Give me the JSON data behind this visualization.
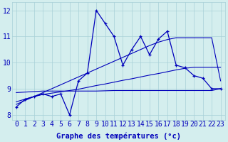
{
  "title": "Graphe des températures (°c)",
  "background_color": "#d4eeee",
  "grid_color": "#a8d0d8",
  "line_color": "#0000bb",
  "x_labels": [
    "0",
    "1",
    "2",
    "3",
    "4",
    "5",
    "6",
    "7",
    "8",
    "9",
    "10",
    "11",
    "12",
    "13",
    "14",
    "15",
    "16",
    "17",
    "18",
    "19",
    "20",
    "21",
    "22",
    "23"
  ],
  "x_data": [
    0,
    1,
    2,
    3,
    4,
    5,
    6,
    7,
    8,
    9,
    10,
    11,
    12,
    13,
    14,
    15,
    16,
    17,
    18,
    19,
    20,
    21,
    22,
    23
  ],
  "main_line_y": [
    8.3,
    8.6,
    8.7,
    8.8,
    8.7,
    8.8,
    8.0,
    9.3,
    9.6,
    12.0,
    11.5,
    11.0,
    9.9,
    10.5,
    11.0,
    10.3,
    10.9,
    11.2,
    9.9,
    9.8,
    9.5,
    9.4,
    9.0,
    9.0
  ],
  "trend_flat_y": [
    8.85,
    8.87,
    8.89,
    8.91,
    8.91,
    8.91,
    8.91,
    8.91,
    8.91,
    8.91,
    8.92,
    8.93,
    8.93,
    8.93,
    8.93,
    8.93,
    8.93,
    8.93,
    8.93,
    8.93,
    8.93,
    8.93,
    8.93,
    9.0
  ],
  "trend_mid_y": [
    8.5,
    8.6,
    8.7,
    8.78,
    8.83,
    8.88,
    8.93,
    8.98,
    9.05,
    9.12,
    9.18,
    9.25,
    9.32,
    9.38,
    9.45,
    9.52,
    9.58,
    9.65,
    9.72,
    9.78,
    9.82,
    9.82,
    9.82,
    9.82
  ],
  "trend_steep_y": [
    8.4,
    8.55,
    8.7,
    8.85,
    9.0,
    9.15,
    9.3,
    9.45,
    9.6,
    9.75,
    9.9,
    10.05,
    10.2,
    10.35,
    10.5,
    10.65,
    10.78,
    10.88,
    10.95,
    10.95,
    10.95,
    10.95,
    10.95,
    9.3
  ],
  "ylim": [
    7.8,
    12.3
  ],
  "yticks": [
    8,
    9,
    10,
    11,
    12
  ],
  "tick_fontsize": 7,
  "xlabel_fontsize": 7.5
}
